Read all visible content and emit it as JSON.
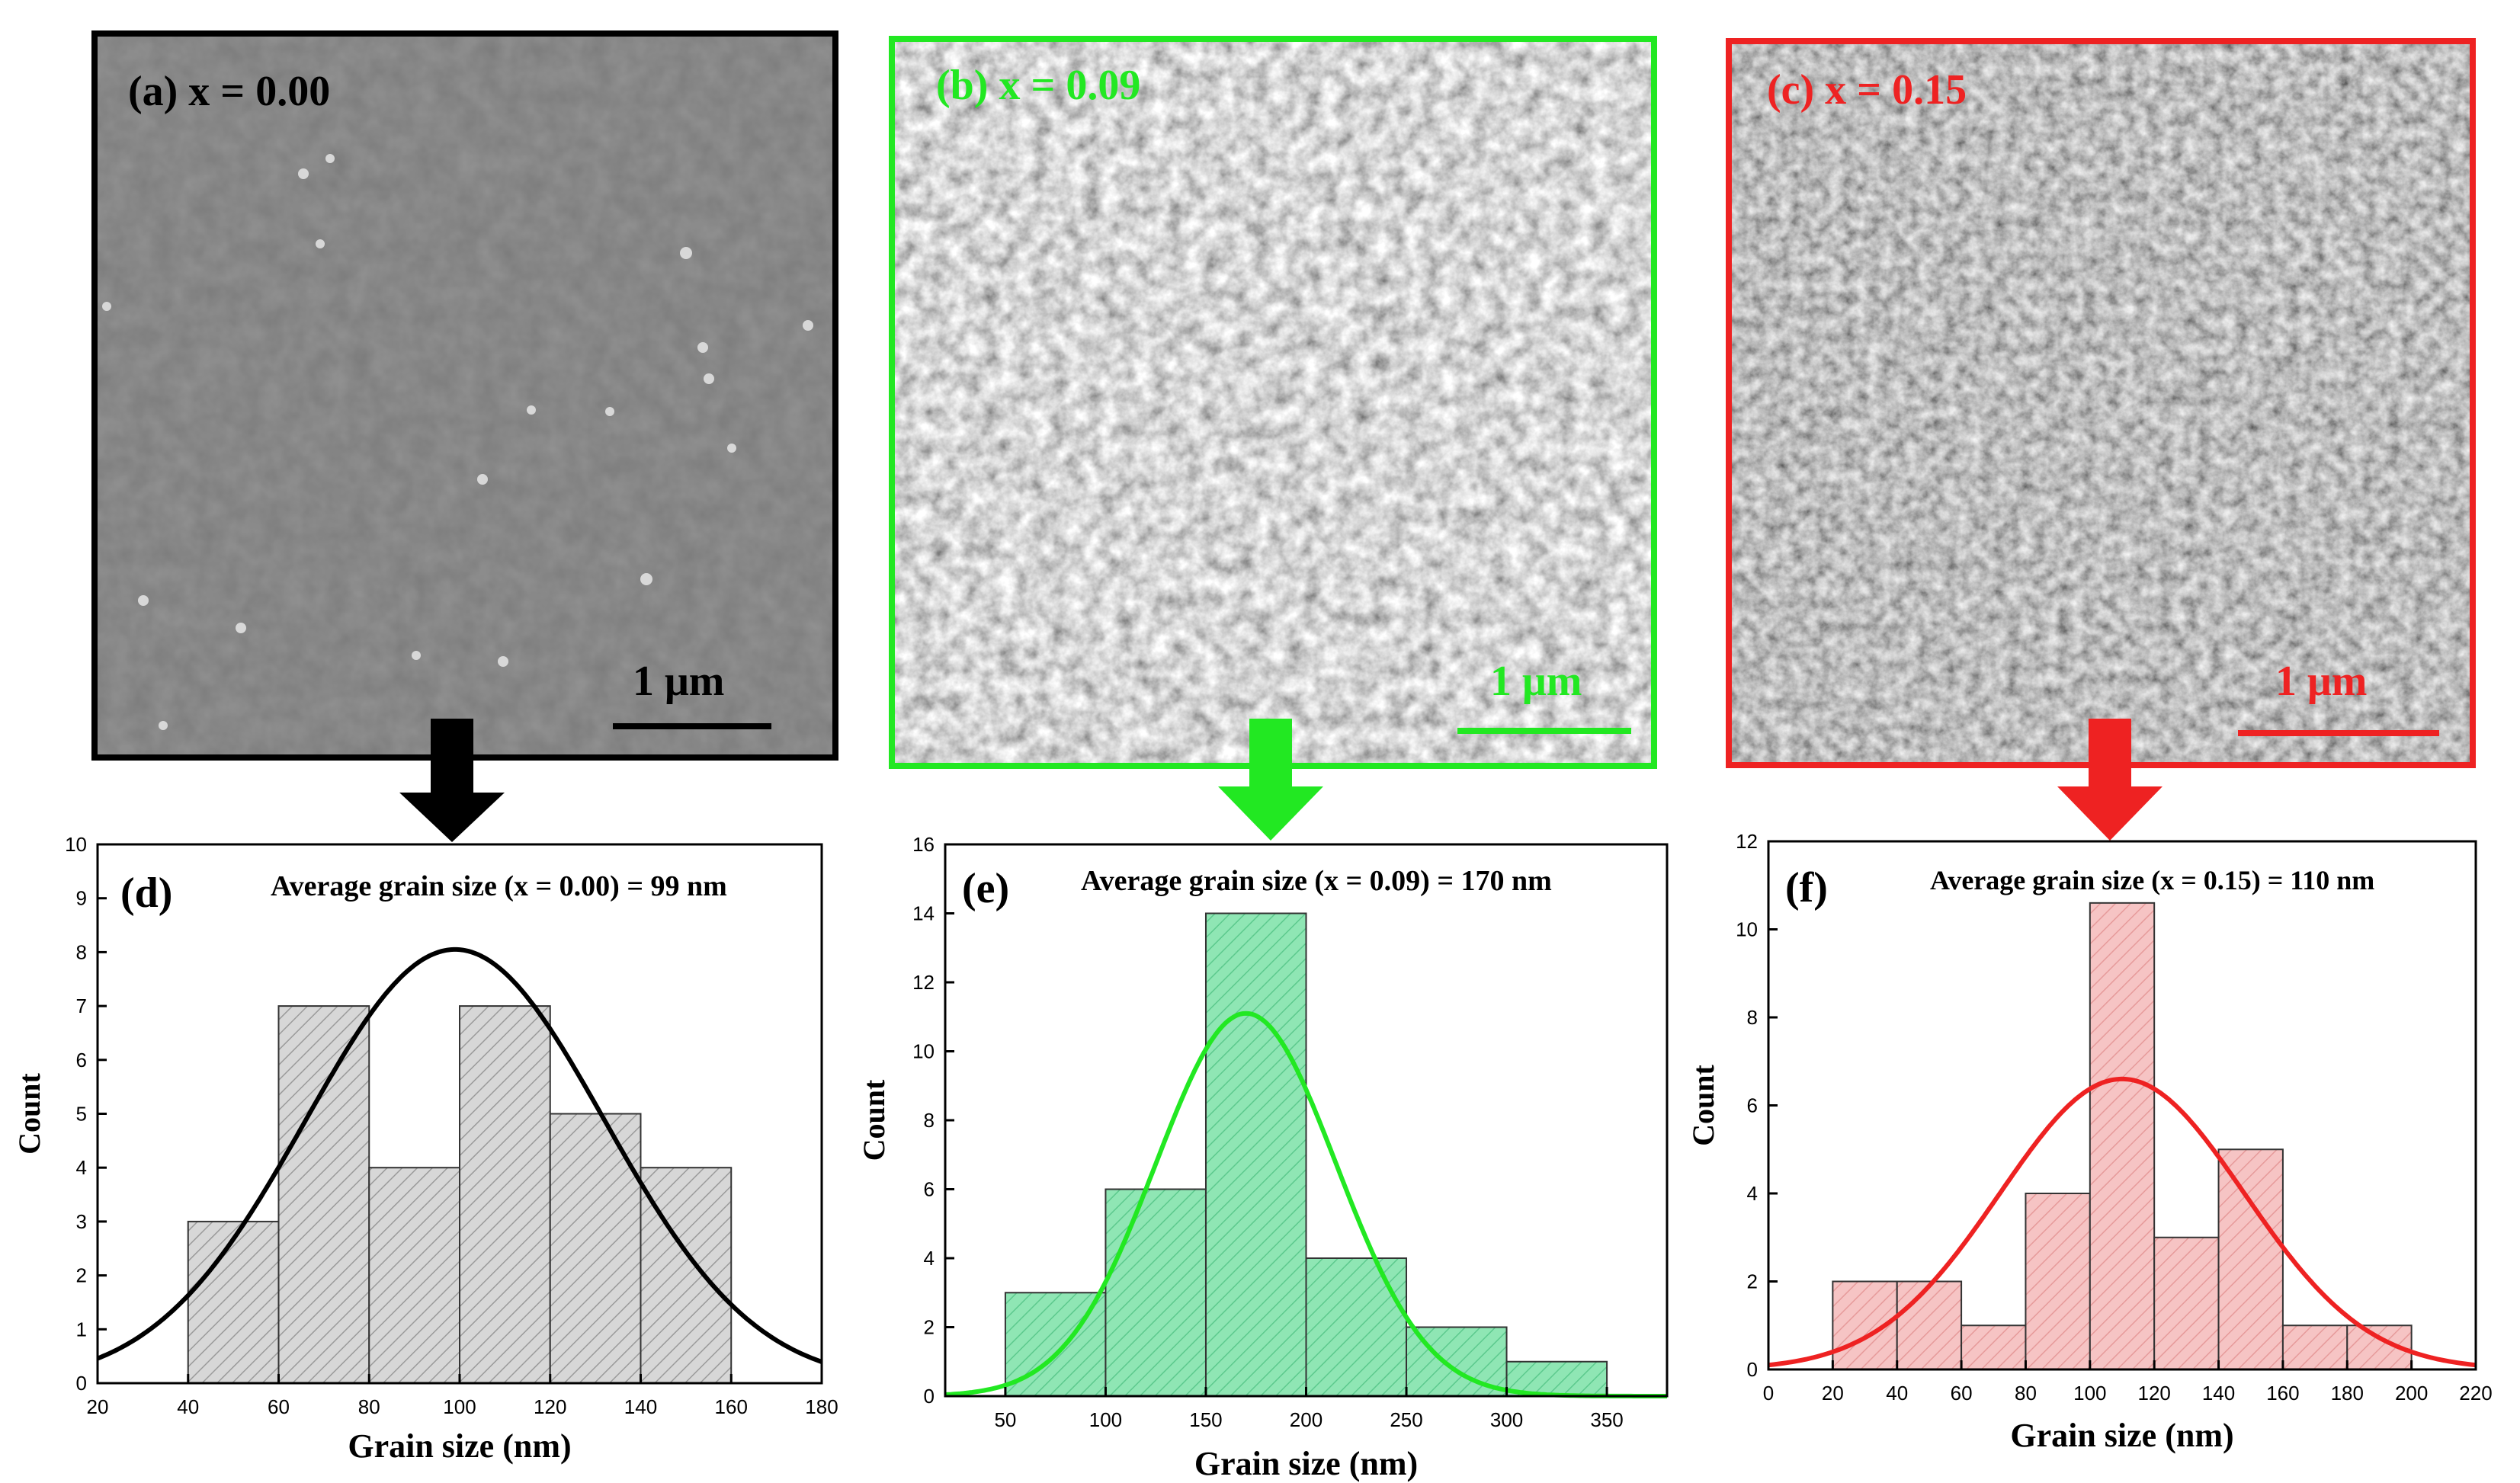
{
  "colors": {
    "a": "#000000",
    "b": "#22e822",
    "c": "#ee2222",
    "fill_a": "#d7d7d7",
    "fill_b": "#8fe6b4",
    "fill_c": "#f6c4c4"
  },
  "sem_panels": [
    {
      "id": "a",
      "label": "(a) x = 0.00",
      "scalebar_label": "1 μm"
    },
    {
      "id": "b",
      "label": "(b)  x = 0.09",
      "scalebar_label": "1 μm"
    },
    {
      "id": "c",
      "label": "(c) x = 0.15",
      "scalebar_label": "1 μm"
    }
  ],
  "chart_data": [
    {
      "id": "d",
      "type": "bar",
      "panel_label": "(d)",
      "title": "Average grain size (x = 0.00) = 99 nm",
      "xlabel": "Grain size (nm)",
      "ylabel": "Count",
      "xlim": [
        20,
        180
      ],
      "ylim": [
        0,
        10
      ],
      "xticks": [
        20,
        40,
        60,
        80,
        100,
        120,
        140,
        160,
        180
      ],
      "yticks": [
        0,
        1,
        2,
        3,
        4,
        5,
        6,
        7,
        8,
        9,
        10
      ],
      "bins": [
        {
          "x0": 40,
          "x1": 60,
          "count": 3
        },
        {
          "x0": 60,
          "x1": 80,
          "count": 7
        },
        {
          "x0": 80,
          "x1": 100,
          "count": 4
        },
        {
          "x0": 100,
          "x1": 120,
          "count": 7
        },
        {
          "x0": 120,
          "x1": 140,
          "count": 5
        },
        {
          "x0": 140,
          "x1": 160,
          "count": 4
        }
      ],
      "fit": {
        "type": "gaussian",
        "mean": 99,
        "sigma": 33,
        "peak": 8.05
      }
    },
    {
      "id": "e",
      "type": "bar",
      "panel_label": "(e)",
      "title": "Average grain size (x = 0.09) = 170 nm",
      "xlabel": "Grain size (nm)",
      "ylabel": "Count",
      "xlim": [
        20,
        380
      ],
      "ylim": [
        0,
        16
      ],
      "xticks": [
        50,
        100,
        150,
        200,
        250,
        300,
        350
      ],
      "yticks": [
        0,
        2,
        4,
        6,
        8,
        10,
        12,
        14,
        16
      ],
      "bins": [
        {
          "x0": 50,
          "x1": 100,
          "count": 3
        },
        {
          "x0": 100,
          "x1": 150,
          "count": 6
        },
        {
          "x0": 150,
          "x1": 200,
          "count": 14
        },
        {
          "x0": 200,
          "x1": 250,
          "count": 4
        },
        {
          "x0": 250,
          "x1": 300,
          "count": 2
        },
        {
          "x0": 300,
          "x1": 350,
          "count": 1
        }
      ],
      "fit": {
        "type": "gaussian",
        "mean": 170,
        "sigma": 45,
        "peak": 11.1
      }
    },
    {
      "id": "f",
      "type": "bar",
      "panel_label": "(f)",
      "title": "Average grain size (x = 0.15) = 110 nm",
      "xlabel": "Grain size (nm)",
      "ylabel": "Count",
      "xlim": [
        0,
        220
      ],
      "ylim": [
        0,
        12
      ],
      "xticks": [
        0,
        20,
        40,
        60,
        80,
        100,
        120,
        140,
        160,
        180,
        200,
        220
      ],
      "yticks": [
        0,
        2,
        4,
        6,
        8,
        10,
        12
      ],
      "bins": [
        {
          "x0": 20,
          "x1": 40,
          "count": 2
        },
        {
          "x0": 40,
          "x1": 60,
          "count": 2
        },
        {
          "x0": 60,
          "x1": 80,
          "count": 1
        },
        {
          "x0": 80,
          "x1": 100,
          "count": 4
        },
        {
          "x0": 100,
          "x1": 120,
          "count": 10.6
        },
        {
          "x0": 120,
          "x1": 140,
          "count": 3
        },
        {
          "x0": 140,
          "x1": 160,
          "count": 5
        },
        {
          "x0": 160,
          "x1": 180,
          "count": 1
        },
        {
          "x0": 180,
          "x1": 200,
          "count": 1
        }
      ],
      "fit": {
        "type": "gaussian",
        "mean": 110,
        "sigma": 38,
        "peak": 6.6
      }
    }
  ]
}
